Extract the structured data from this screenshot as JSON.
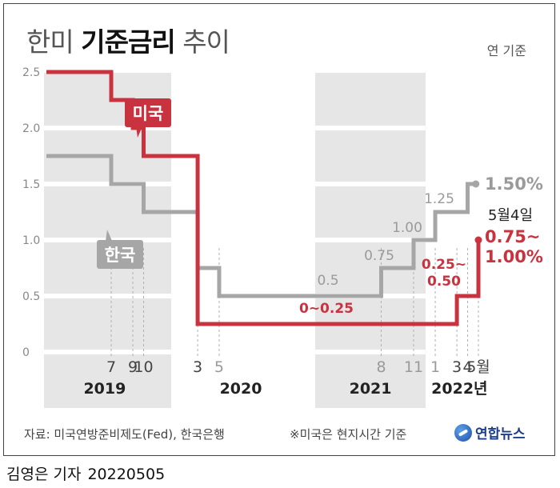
{
  "title": {
    "part1": "한미",
    "bold": "기준금리",
    "part2": "추이"
  },
  "basis_note": "연 기준",
  "source": "자료: 미국연방준비제도(Fed), 한국은행",
  "footnote": "※미국은 현지시간 기준",
  "agency": "연합뉴스",
  "byline": {
    "reporter": "김영은 기자",
    "date": "20220505"
  },
  "chart_data": {
    "type": "line",
    "step": true,
    "ylim": [
      0,
      2.5
    ],
    "yticks": [
      "2.5",
      "2.0",
      "1.5",
      "1.0",
      "0.5",
      "0"
    ],
    "y_unit": "연 %",
    "x_month_ticks": [
      "7",
      "9",
      "10",
      "3",
      "5",
      "8",
      "11",
      "1",
      "3",
      "4",
      "5월"
    ],
    "x_month_dates": [
      2019.5,
      2019.667,
      2019.75,
      2020.167,
      2020.333,
      2021.583,
      2021.833,
      2022.0,
      2022.167,
      2022.25,
      2022.333
    ],
    "years": [
      "2019",
      "2020",
      "2021",
      "2022년"
    ],
    "series": [
      {
        "name": "미국",
        "color": "#c8333f",
        "points": [
          [
            2019.0,
            2.5
          ],
          [
            2019.5,
            2.25
          ],
          [
            2019.667,
            2.0
          ],
          [
            2019.75,
            1.75
          ],
          [
            2020.167,
            0.25
          ],
          [
            2022.167,
            0.5
          ],
          [
            2022.333,
            1.0
          ]
        ],
        "end_x": 2022.333
      },
      {
        "name": "한국",
        "color": "#a6a6a6",
        "points": [
          [
            2019.0,
            1.75
          ],
          [
            2019.5,
            1.5
          ],
          [
            2019.75,
            1.25
          ],
          [
            2020.167,
            0.75
          ],
          [
            2020.333,
            0.5
          ],
          [
            2021.583,
            0.75
          ],
          [
            2021.833,
            1.0
          ],
          [
            2022.0,
            1.25
          ],
          [
            2022.25,
            1.5
          ]
        ],
        "end_x": 2022.333
      }
    ],
    "annotations": {
      "kr_05": "0.5",
      "kr_075": "0.75",
      "kr_100": "1.00",
      "kr_125": "1.25",
      "kr_150": "1.50%",
      "us_range_low": "0~0.25",
      "us_range_mid1": "0.25~",
      "us_range_mid2": "0.50",
      "us_date": "5월4일",
      "us_now1": "0.75~",
      "us_now2": "1.00%"
    }
  }
}
